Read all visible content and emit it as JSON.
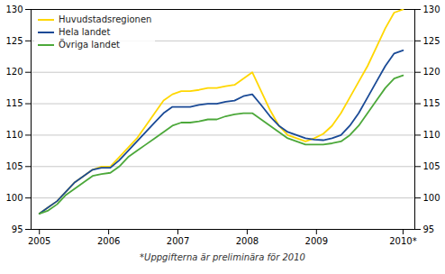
{
  "chart_data": {
    "type": "line",
    "subtitle": "*Uppgifterna är preliminära för 2010",
    "x": [
      2005,
      2005.128,
      2005.2561,
      2005.3841,
      2005.5122,
      2005.6402,
      2005.7683,
      2005.8963,
      2006.0244,
      2006.1524,
      2006.2805,
      2006.4085,
      2006.5366,
      2006.6646,
      2006.7927,
      2006.9207,
      2007.0488,
      2007.1768,
      2007.3049,
      2007.4329,
      2007.561,
      2007.689,
      2007.8171,
      2007.9451,
      2008.0732,
      2008.2012,
      2008.3293,
      2008.4573,
      2008.5854,
      2008.7134,
      2008.8415,
      2008.9695,
      2009.0976,
      2009.2256,
      2009.3537,
      2009.4817,
      2009.6098,
      2009.7378,
      2009.8659,
      2009.9939,
      2010.122,
      2010.25
    ],
    "series": [
      {
        "name": "Huvudstadsregionen",
        "color": "#FFD700",
        "values": [
          97.5,
          98.5,
          99.5,
          101.0,
          102.5,
          103.5,
          104.5,
          105.0,
          105.0,
          106.5,
          108.0,
          109.5,
          111.5,
          113.5,
          115.5,
          116.5,
          117.0,
          117.0,
          117.2,
          117.5,
          117.5,
          117.8,
          118.0,
          119.0,
          120.0,
          117.0,
          114.0,
          111.5,
          110.0,
          109.5,
          109.0,
          109.5,
          110.2,
          111.5,
          113.5,
          116.0,
          118.5,
          121.0,
          124.0,
          127.0,
          129.5,
          130.0
        ]
      },
      {
        "name": "Hela landet",
        "color": "#1A4A96",
        "values": [
          97.5,
          98.5,
          99.5,
          101.0,
          102.5,
          103.5,
          104.5,
          104.8,
          104.8,
          106.0,
          107.5,
          109.0,
          110.5,
          112.0,
          113.5,
          114.5,
          114.5,
          114.5,
          114.8,
          115.0,
          115.0,
          115.3,
          115.5,
          116.2,
          116.5,
          114.8,
          113.0,
          111.5,
          110.5,
          110.0,
          109.5,
          109.3,
          109.2,
          109.5,
          110.0,
          111.5,
          113.5,
          116.0,
          118.5,
          121.0,
          123.0,
          123.5
        ]
      },
      {
        "name": "Övriga landet",
        "color": "#4CA83A",
        "values": [
          97.5,
          98.0,
          99.0,
          100.5,
          101.5,
          102.5,
          103.5,
          103.8,
          104.0,
          105.0,
          106.5,
          107.5,
          108.5,
          109.5,
          110.5,
          111.5,
          112.0,
          112.0,
          112.2,
          112.5,
          112.5,
          113.0,
          113.3,
          113.5,
          113.5,
          112.5,
          111.5,
          110.5,
          109.5,
          109.0,
          108.5,
          108.5,
          108.5,
          108.7,
          109.0,
          110.0,
          111.5,
          113.5,
          115.5,
          117.5,
          119.0,
          119.5
        ]
      }
    ],
    "xlim": [
      2004.88,
      2010.42
    ],
    "xticks": [
      2005,
      2006,
      2007,
      2008,
      2009,
      {
        "value": 2010.25,
        "label": "2010*"
      }
    ],
    "ylim": [
      95,
      130
    ],
    "yticks": [
      95,
      100,
      105,
      110,
      115,
      120,
      125,
      130
    ],
    "y2lim": [
      95,
      130
    ],
    "y2ticks": [
      95,
      100,
      105,
      110,
      115,
      120,
      125,
      130
    ],
    "grid": "y",
    "legend": "upper left"
  }
}
